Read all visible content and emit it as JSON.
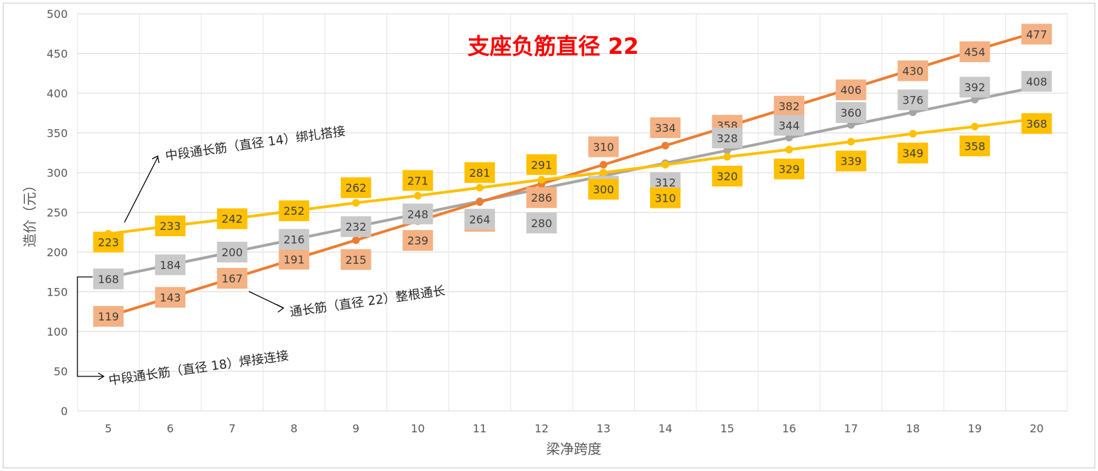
{
  "chart_data": {
    "type": "line",
    "title": "支座负筋直径 22",
    "xlabel": "梁净跨度",
    "ylabel": "造价（元）",
    "x": [
      5,
      6,
      7,
      8,
      9,
      10,
      11,
      12,
      13,
      14,
      15,
      16,
      17,
      18,
      19,
      20
    ],
    "ylim": [
      0,
      500
    ],
    "yticks": [
      0,
      50,
      100,
      150,
      200,
      250,
      300,
      350,
      400,
      450,
      500
    ],
    "grid": true,
    "colors": {
      "orange": "#ED7D31",
      "orange_label": "#F4B183",
      "gray": "#A5A5A5",
      "gray_label": "#C9C9C9",
      "yellow": "#FFC000",
      "title": "#FF0000"
    },
    "series": [
      {
        "key": "orange",
        "values": [
          119,
          143,
          167,
          191,
          215,
          239,
          263,
          286,
          310,
          334,
          358,
          382,
          406,
          430,
          454,
          477
        ]
      },
      {
        "key": "gray",
        "values": [
          168,
          184,
          200,
          216,
          232,
          248,
          264,
          280,
          296,
          312,
          328,
          344,
          360,
          376,
          392,
          408
        ]
      },
      {
        "key": "yellow",
        "values": [
          223,
          233,
          242,
          252,
          262,
          271,
          281,
          291,
          300,
          310,
          320,
          329,
          339,
          349,
          358,
          368
        ]
      }
    ],
    "annotations": [
      {
        "text": "中段通长筋（直径 14）绑扎搭接",
        "series": "yellow"
      },
      {
        "text": "通长筋（直径 22）整根通长",
        "series": "orange"
      },
      {
        "text": "中段通长筋（直径 18）焊接连接",
        "series": "gray"
      }
    ]
  }
}
